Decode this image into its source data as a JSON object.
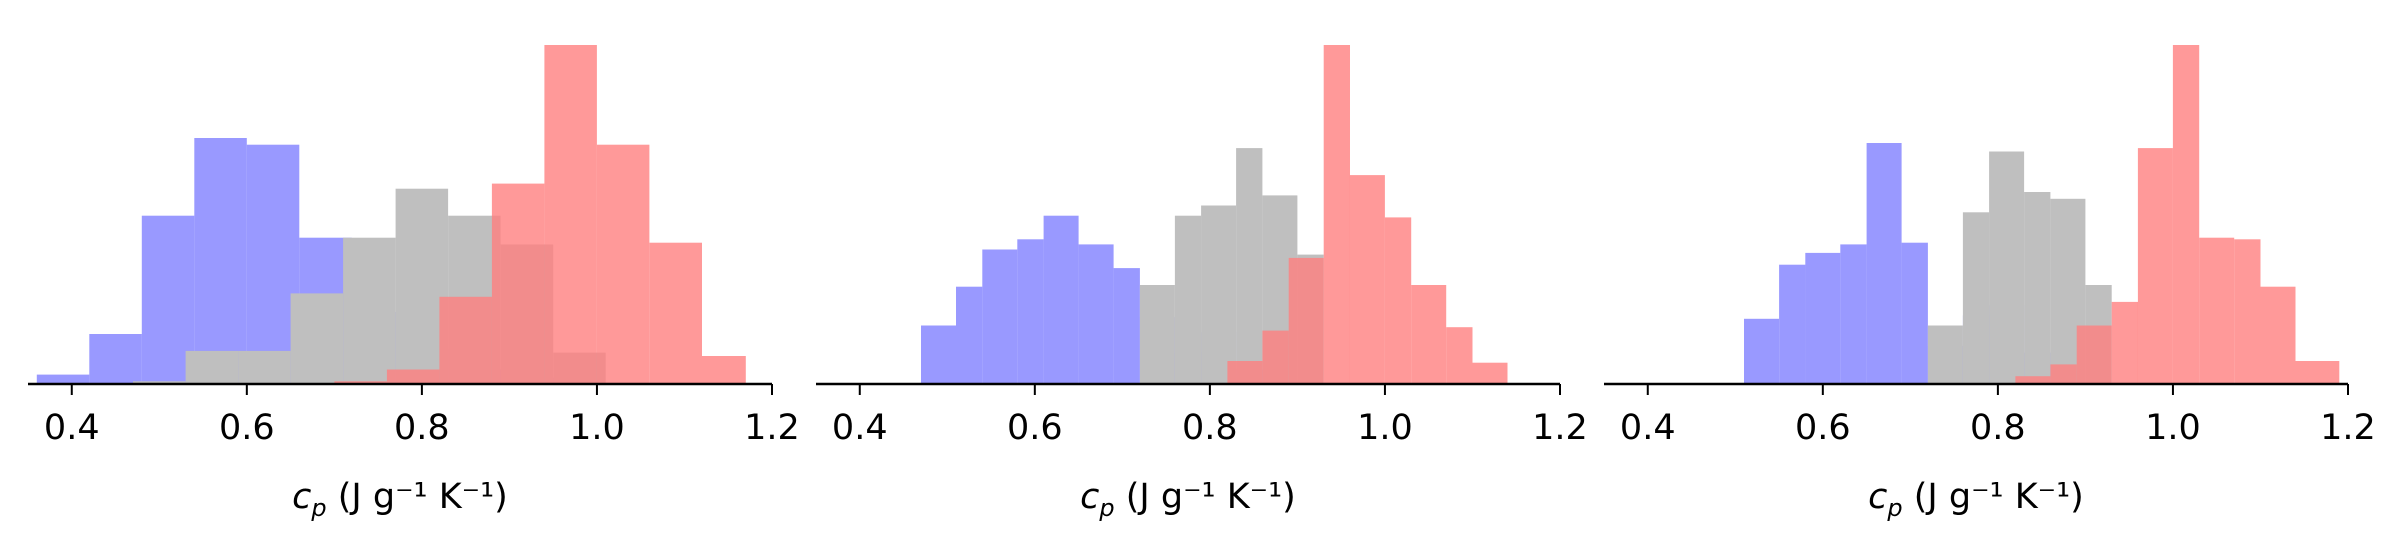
{
  "colors": {
    "blue": "#7f7fff",
    "grey": "#bfbfbf",
    "red": "#ff7f7f",
    "blue_dark": "#6060e0",
    "red_dark": "#e05f5f",
    "purple": "#7030a0",
    "axis": "#000000"
  },
  "chart_data": [
    {
      "type": "histogram",
      "xlabel": "c_p (J g⁻¹ K⁻¹)",
      "xticks": [
        "0.4",
        "0.6",
        "0.8",
        "1.0",
        "1.2"
      ],
      "xlim": [
        0.35,
        1.2
      ],
      "ylim": [
        0,
        1.0
      ],
      "yaxis_visible": false,
      "series": [
        {
          "color": "blue",
          "bars": [
            {
              "x0": 0.36,
              "x1": 0.42,
              "h": 0.025
            },
            {
              "x0": 0.42,
              "x1": 0.48,
              "h": 0.145
            },
            {
              "x0": 0.48,
              "x1": 0.54,
              "h": 0.495
            },
            {
              "x0": 0.54,
              "x1": 0.6,
              "h": 0.725
            },
            {
              "x0": 0.6,
              "x1": 0.66,
              "h": 0.705
            },
            {
              "x0": 0.66,
              "x1": 0.72,
              "h": 0.43
            },
            {
              "x0": 0.72,
              "x1": 0.78,
              "h": 0.21
            },
            {
              "x0": 0.78,
              "x1": 0.84,
              "h": 0.1
            },
            {
              "x0": 0.84,
              "x1": 0.9,
              "h": 0.04
            },
            {
              "x0": 0.9,
              "x1": 0.96,
              "h": 0.015
            }
          ]
        },
        {
          "color": "grey",
          "bars": [
            {
              "x0": 0.47,
              "x1": 0.53,
              "h": 0.005
            },
            {
              "x0": 0.53,
              "x1": 0.59,
              "h": 0.095
            },
            {
              "x0": 0.59,
              "x1": 0.65,
              "h": 0.095
            },
            {
              "x0": 0.65,
              "x1": 0.71,
              "h": 0.265
            },
            {
              "x0": 0.71,
              "x1": 0.77,
              "h": 0.43
            },
            {
              "x0": 0.77,
              "x1": 0.83,
              "h": 0.575
            },
            {
              "x0": 0.83,
              "x1": 0.89,
              "h": 0.495
            },
            {
              "x0": 0.89,
              "x1": 0.95,
              "h": 0.41
            },
            {
              "x0": 0.95,
              "x1": 1.01,
              "h": 0.09
            }
          ]
        },
        {
          "color": "red",
          "bars": [
            {
              "x0": 0.7,
              "x1": 0.76,
              "h": 0.005
            },
            {
              "x0": 0.76,
              "x1": 0.82,
              "h": 0.04
            },
            {
              "x0": 0.82,
              "x1": 0.88,
              "h": 0.255
            },
            {
              "x0": 0.88,
              "x1": 0.94,
              "h": 0.59
            },
            {
              "x0": 0.94,
              "x1": 1.0,
              "h": 1.0
            },
            {
              "x0": 1.0,
              "x1": 1.06,
              "h": 0.705
            },
            {
              "x0": 1.06,
              "x1": 1.12,
              "h": 0.415
            },
            {
              "x0": 1.12,
              "x1": 1.17,
              "h": 0.08
            }
          ]
        }
      ]
    },
    {
      "type": "histogram",
      "xlabel": "c_p (J g⁻¹ K⁻¹)",
      "xticks": [
        "0.4",
        "0.6",
        "0.8",
        "1.0",
        "1.2"
      ],
      "xlim": [
        0.35,
        1.2
      ],
      "ylim": [
        0,
        1.0
      ],
      "yaxis_visible": false,
      "series": [
        {
          "color": "blue",
          "bars": [
            {
              "x0": 0.47,
              "x1": 0.51,
              "h": 0.17
            },
            {
              "x0": 0.51,
              "x1": 0.54,
              "h": 0.285
            },
            {
              "x0": 0.54,
              "x1": 0.58,
              "h": 0.395
            },
            {
              "x0": 0.58,
              "x1": 0.61,
              "h": 0.425
            },
            {
              "x0": 0.61,
              "x1": 0.65,
              "h": 0.495
            },
            {
              "x0": 0.65,
              "x1": 0.69,
              "h": 0.41
            },
            {
              "x0": 0.69,
              "x1": 0.72,
              "h": 0.34
            },
            {
              "x0": 0.72,
              "x1": 0.76,
              "h": 0.195
            },
            {
              "x0": 0.76,
              "x1": 0.79,
              "h": 0.09
            },
            {
              "x0": 0.79,
              "x1": 0.83,
              "h": 0.15
            },
            {
              "x0": 0.83,
              "x1": 0.86,
              "h": 0.04
            }
          ]
        },
        {
          "color": "grey",
          "bars": [
            {
              "x0": 0.72,
              "x1": 0.76,
              "h": 0.29
            },
            {
              "x0": 0.76,
              "x1": 0.79,
              "h": 0.495
            },
            {
              "x0": 0.79,
              "x1": 0.83,
              "h": 0.525
            },
            {
              "x0": 0.83,
              "x1": 0.86,
              "h": 0.695
            },
            {
              "x0": 0.86,
              "x1": 0.9,
              "h": 0.555
            },
            {
              "x0": 0.9,
              "x1": 0.93,
              "h": 0.38
            }
          ]
        },
        {
          "color": "red",
          "bars": [
            {
              "x0": 0.82,
              "x1": 0.86,
              "h": 0.065
            },
            {
              "x0": 0.86,
              "x1": 0.89,
              "h": 0.155
            },
            {
              "x0": 0.89,
              "x1": 0.93,
              "h": 0.37
            },
            {
              "x0": 0.93,
              "x1": 0.96,
              "h": 1.0
            },
            {
              "x0": 0.96,
              "x1": 1.0,
              "h": 0.615
            },
            {
              "x0": 1.0,
              "x1": 1.03,
              "h": 0.49
            },
            {
              "x0": 1.03,
              "x1": 1.07,
              "h": 0.29
            },
            {
              "x0": 1.07,
              "x1": 1.1,
              "h": 0.165
            },
            {
              "x0": 1.1,
              "x1": 1.14,
              "h": 0.06
            }
          ]
        }
      ]
    },
    {
      "type": "histogram",
      "xlabel": "c_p (J g⁻¹ K⁻¹)",
      "xticks": [
        "0.4",
        "0.6",
        "0.8",
        "1.0",
        "1.2"
      ],
      "xlim": [
        0.35,
        1.2
      ],
      "ylim": [
        0,
        1.0
      ],
      "yaxis_visible": false,
      "series": [
        {
          "color": "blue",
          "bars": [
            {
              "x0": 0.51,
              "x1": 0.55,
              "h": 0.19
            },
            {
              "x0": 0.55,
              "x1": 0.58,
              "h": 0.35
            },
            {
              "x0": 0.58,
              "x1": 0.62,
              "h": 0.385
            },
            {
              "x0": 0.62,
              "x1": 0.65,
              "h": 0.41
            },
            {
              "x0": 0.65,
              "x1": 0.69,
              "h": 0.71
            },
            {
              "x0": 0.69,
              "x1": 0.72,
              "h": 0.415
            },
            {
              "x0": 0.72,
              "x1": 0.76,
              "h": 0.11
            },
            {
              "x0": 0.76,
              "x1": 0.79,
              "h": 0.2
            },
            {
              "x0": 0.79,
              "x1": 0.83,
              "h": 0.23
            },
            {
              "x0": 0.83,
              "x1": 0.86,
              "h": 0.09
            }
          ]
        },
        {
          "color": "grey",
          "bars": [
            {
              "x0": 0.72,
              "x1": 0.76,
              "h": 0.17
            },
            {
              "x0": 0.76,
              "x1": 0.79,
              "h": 0.505
            },
            {
              "x0": 0.79,
              "x1": 0.83,
              "h": 0.685
            },
            {
              "x0": 0.83,
              "x1": 0.86,
              "h": 0.565
            },
            {
              "x0": 0.86,
              "x1": 0.9,
              "h": 0.545
            },
            {
              "x0": 0.9,
              "x1": 0.93,
              "h": 0.29
            }
          ]
        },
        {
          "color": "red",
          "bars": [
            {
              "x0": 0.82,
              "x1": 0.86,
              "h": 0.02
            },
            {
              "x0": 0.86,
              "x1": 0.89,
              "h": 0.055
            },
            {
              "x0": 0.89,
              "x1": 0.93,
              "h": 0.17
            },
            {
              "x0": 0.93,
              "x1": 0.96,
              "h": 0.24
            },
            {
              "x0": 0.96,
              "x1": 1.0,
              "h": 0.695
            },
            {
              "x0": 1.0,
              "x1": 1.03,
              "h": 1.0
            },
            {
              "x0": 1.03,
              "x1": 1.07,
              "h": 0.43
            },
            {
              "x0": 1.07,
              "x1": 1.1,
              "h": 0.425
            },
            {
              "x0": 1.1,
              "x1": 1.14,
              "h": 0.285
            },
            {
              "x0": 1.14,
              "x1": 1.19,
              "h": 0.065
            }
          ]
        }
      ]
    }
  ]
}
